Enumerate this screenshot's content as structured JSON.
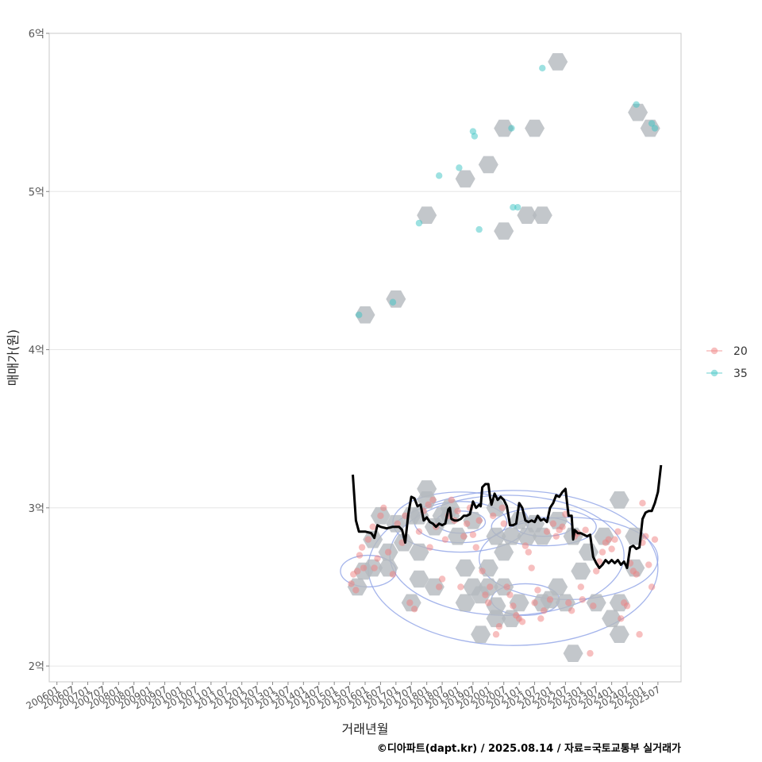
{
  "chart_data": {
    "type": "scatter",
    "xlabel": "거래년월",
    "ylabel": "매매가(원)",
    "caption": "©디아파트(dapt.kr) / 2025.08.14 / 자료=국토교통부 실거래가",
    "x_ticks": [
      "200601",
      "200607",
      "200701",
      "200707",
      "200801",
      "200807",
      "200901",
      "200907",
      "201001",
      "201007",
      "201101",
      "201107",
      "201201",
      "201207",
      "201301",
      "201307",
      "201401",
      "201407",
      "201501",
      "201507",
      "201601",
      "201607",
      "201701",
      "201707",
      "201801",
      "201807",
      "201901",
      "201907",
      "202001",
      "202007",
      "202101",
      "202107",
      "202201",
      "202207",
      "202301",
      "202307",
      "202401",
      "202407",
      "202501",
      "202507"
    ],
    "xlim": [
      2005.75,
      2026.25
    ],
    "ylim": [
      1.9,
      6.0
    ],
    "y_ticks": [
      {
        "value": 2,
        "label": "2억"
      },
      {
        "value": 3,
        "label": "3억"
      },
      {
        "value": 4,
        "label": "4억"
      },
      {
        "value": 5,
        "label": "5억"
      },
      {
        "value": 6,
        "label": "6억"
      }
    ],
    "colors": {
      "series_20": "#f08080",
      "series_35": "#3cc4c4",
      "hexbin": "#b4b9be",
      "contour": "#8ea2e6",
      "trend": "#000000",
      "grid": "#e6e6e6",
      "panel_border": "#c8c8c8"
    },
    "legend": {
      "position": "right",
      "entries": [
        {
          "label": "20",
          "series": "20"
        },
        {
          "label": "35",
          "series": "35"
        }
      ]
    },
    "series": [
      {
        "name": "20",
        "points": [
          [
            2015.55,
            2.52
          ],
          [
            2015.62,
            2.58
          ],
          [
            2015.7,
            2.48
          ],
          [
            2015.75,
            2.6
          ],
          [
            2015.82,
            2.7
          ],
          [
            2015.9,
            2.75
          ],
          [
            2015.95,
            2.62
          ],
          [
            2016.1,
            2.8
          ],
          [
            2016.25,
            2.88
          ],
          [
            2016.4,
            2.68
          ],
          [
            2016.5,
            2.95
          ],
          [
            2016.6,
            3.0
          ],
          [
            2016.75,
            2.72
          ],
          [
            2016.9,
            2.58
          ],
          [
            2017.05,
            2.9
          ],
          [
            2017.2,
            2.78
          ],
          [
            2017.3,
            2.95
          ],
          [
            2017.45,
            2.4
          ],
          [
            2017.6,
            2.36
          ],
          [
            2017.75,
            2.85
          ],
          [
            2017.9,
            2.98
          ],
          [
            2018.05,
            3.02
          ],
          [
            2018.1,
            2.75
          ],
          [
            2018.2,
            3.05
          ],
          [
            2018.3,
            2.88
          ],
          [
            2018.4,
            2.5
          ],
          [
            2018.5,
            2.55
          ],
          [
            2018.6,
            2.8
          ],
          [
            2018.7,
            2.95
          ],
          [
            2018.8,
            3.05
          ],
          [
            2018.9,
            2.92
          ],
          [
            2019.0,
            2.98
          ],
          [
            2019.1,
            2.5
          ],
          [
            2019.2,
            2.82
          ],
          [
            2019.3,
            2.9
          ],
          [
            2019.4,
            3.0
          ],
          [
            2019.5,
            2.83
          ],
          [
            2019.6,
            2.75
          ],
          [
            2019.7,
            2.92
          ],
          [
            2019.8,
            2.6
          ],
          [
            2019.9,
            2.45
          ],
          [
            2020.0,
            2.4
          ],
          [
            2020.05,
            2.5
          ],
          [
            2020.15,
            2.95
          ],
          [
            2020.25,
            2.2
          ],
          [
            2020.35,
            2.25
          ],
          [
            2020.45,
            3.0
          ],
          [
            2020.5,
            2.9
          ],
          [
            2020.6,
            2.5
          ],
          [
            2020.7,
            2.45
          ],
          [
            2020.8,
            2.38
          ],
          [
            2020.9,
            2.32
          ],
          [
            2021.0,
            2.3
          ],
          [
            2021.1,
            2.28
          ],
          [
            2021.2,
            2.76
          ],
          [
            2021.3,
            2.72
          ],
          [
            2021.4,
            2.62
          ],
          [
            2021.5,
            2.4
          ],
          [
            2021.6,
            2.48
          ],
          [
            2021.7,
            2.3
          ],
          [
            2021.8,
            2.35
          ],
          [
            2021.9,
            2.85
          ],
          [
            2022.0,
            2.42
          ],
          [
            2022.1,
            2.9
          ],
          [
            2022.2,
            2.82
          ],
          [
            2022.3,
            2.86
          ],
          [
            2022.4,
            2.88
          ],
          [
            2022.5,
            2.96
          ],
          [
            2022.6,
            2.4
          ],
          [
            2022.7,
            2.35
          ],
          [
            2022.8,
            2.82
          ],
          [
            2022.9,
            2.84
          ],
          [
            2023.0,
            2.5
          ],
          [
            2023.05,
            2.42
          ],
          [
            2023.15,
            2.86
          ],
          [
            2023.3,
            2.08
          ],
          [
            2023.4,
            2.38
          ],
          [
            2023.5,
            2.6
          ],
          [
            2023.6,
            2.66
          ],
          [
            2023.7,
            2.72
          ],
          [
            2023.8,
            2.78
          ],
          [
            2023.9,
            2.8
          ],
          [
            2024.0,
            2.74
          ],
          [
            2024.1,
            2.8
          ],
          [
            2024.2,
            2.85
          ],
          [
            2024.3,
            2.3
          ],
          [
            2024.4,
            2.4
          ],
          [
            2024.5,
            2.38
          ],
          [
            2024.6,
            2.65
          ],
          [
            2024.7,
            2.6
          ],
          [
            2024.8,
            2.58
          ],
          [
            2024.9,
            2.2
          ],
          [
            2025.0,
            2.78
          ],
          [
            2025.1,
            2.82
          ],
          [
            2025.2,
            2.64
          ],
          [
            2025.3,
            2.5
          ],
          [
            2025.4,
            2.8
          ],
          [
            2025.0,
            3.03
          ],
          [
            2016.3,
            2.62
          ]
        ]
      },
      {
        "name": "35",
        "points": [
          [
            2015.8,
            4.22
          ],
          [
            2016.9,
            4.3
          ],
          [
            2017.75,
            4.8
          ],
          [
            2018.4,
            5.1
          ],
          [
            2019.05,
            5.15
          ],
          [
            2019.5,
            5.38
          ],
          [
            2019.55,
            5.35
          ],
          [
            2019.7,
            4.76
          ],
          [
            2020.8,
            4.9
          ],
          [
            2020.95,
            4.9
          ],
          [
            2020.75,
            5.4
          ],
          [
            2021.75,
            5.78
          ],
          [
            2024.8,
            5.55
          ],
          [
            2025.3,
            5.43
          ],
          [
            2025.4,
            5.4
          ]
        ]
      }
    ],
    "hexbin_centers": [
      [
        2015.75,
        2.5
      ],
      [
        2015.95,
        2.6
      ],
      [
        2016.25,
        2.62
      ],
      [
        2016.25,
        2.8
      ],
      [
        2016.5,
        2.95
      ],
      [
        2016.75,
        2.62
      ],
      [
        2016.75,
        2.72
      ],
      [
        2017.0,
        2.9
      ],
      [
        2017.25,
        2.78
      ],
      [
        2017.5,
        2.4
      ],
      [
        2017.5,
        2.95
      ],
      [
        2017.75,
        2.95
      ],
      [
        2017.75,
        2.72
      ],
      [
        2017.75,
        2.55
      ],
      [
        2018.0,
        3.05
      ],
      [
        2018.0,
        3.12
      ],
      [
        2018.25,
        2.88
      ],
      [
        2018.25,
        2.5
      ],
      [
        2018.5,
        2.95
      ],
      [
        2018.75,
        2.95
      ],
      [
        2018.75,
        3.0
      ],
      [
        2019.0,
        2.82
      ],
      [
        2019.25,
        2.62
      ],
      [
        2019.25,
        2.4
      ],
      [
        2019.5,
        2.5
      ],
      [
        2019.5,
        2.92
      ],
      [
        2019.75,
        2.45
      ],
      [
        2019.75,
        2.2
      ],
      [
        2020.0,
        2.62
      ],
      [
        2020.0,
        2.5
      ],
      [
        2020.25,
        2.38
      ],
      [
        2020.25,
        2.3
      ],
      [
        2020.25,
        2.82
      ],
      [
        2020.25,
        3.0
      ],
      [
        2020.5,
        2.5
      ],
      [
        2020.5,
        2.72
      ],
      [
        2020.75,
        2.3
      ],
      [
        2020.75,
        2.82
      ],
      [
        2021.0,
        2.4
      ],
      [
        2021.0,
        2.92
      ],
      [
        2021.25,
        2.82
      ],
      [
        2021.5,
        2.9
      ],
      [
        2021.75,
        2.4
      ],
      [
        2021.75,
        2.82
      ],
      [
        2022.0,
        2.42
      ],
      [
        2022.25,
        2.92
      ],
      [
        2022.25,
        2.5
      ],
      [
        2022.5,
        2.4
      ],
      [
        2022.75,
        2.08
      ],
      [
        2022.75,
        2.82
      ],
      [
        2023.0,
        2.6
      ],
      [
        2023.25,
        2.72
      ],
      [
        2023.5,
        2.4
      ],
      [
        2023.75,
        2.82
      ],
      [
        2024.0,
        2.3
      ],
      [
        2024.25,
        2.2
      ],
      [
        2024.25,
        2.4
      ],
      [
        2024.25,
        3.05
      ],
      [
        2024.75,
        2.62
      ],
      [
        2024.75,
        2.82
      ],
      [
        2016.0,
        4.22
      ],
      [
        2017.0,
        4.32
      ],
      [
        2018.0,
        4.85
      ],
      [
        2019.25,
        5.08
      ],
      [
        2020.0,
        5.17
      ],
      [
        2020.5,
        5.4
      ],
      [
        2020.5,
        4.75
      ],
      [
        2021.25,
        4.85
      ],
      [
        2021.5,
        5.4
      ],
      [
        2021.75,
        4.85
      ],
      [
        2022.25,
        5.82
      ],
      [
        2024.85,
        5.5
      ],
      [
        2025.25,
        5.4
      ]
    ],
    "trend": [
      [
        2015.6,
        3.21
      ],
      [
        2015.7,
        2.92
      ],
      [
        2015.8,
        2.85
      ],
      [
        2016.0,
        2.85
      ],
      [
        2016.2,
        2.84
      ],
      [
        2016.3,
        2.81
      ],
      [
        2016.4,
        2.89
      ],
      [
        2016.5,
        2.88
      ],
      [
        2016.7,
        2.87
      ],
      [
        2016.9,
        2.88
      ],
      [
        2017.1,
        2.88
      ],
      [
        2017.2,
        2.86
      ],
      [
        2017.3,
        2.78
      ],
      [
        2017.4,
        2.96
      ],
      [
        2017.5,
        3.07
      ],
      [
        2017.6,
        3.06
      ],
      [
        2017.7,
        3.01
      ],
      [
        2017.8,
        3.02
      ],
      [
        2017.9,
        2.92
      ],
      [
        2018.0,
        2.94
      ],
      [
        2018.1,
        2.91
      ],
      [
        2018.2,
        2.9
      ],
      [
        2018.3,
        2.88
      ],
      [
        2018.4,
        2.9
      ],
      [
        2018.5,
        2.89
      ],
      [
        2018.6,
        2.9
      ],
      [
        2018.7,
        2.99
      ],
      [
        2018.75,
        3.0
      ],
      [
        2018.8,
        2.93
      ],
      [
        2018.9,
        2.92
      ],
      [
        2019.0,
        2.92
      ],
      [
        2019.1,
        2.93
      ],
      [
        2019.2,
        2.95
      ],
      [
        2019.3,
        2.95
      ],
      [
        2019.4,
        2.96
      ],
      [
        2019.5,
        3.04
      ],
      [
        2019.6,
        3.0
      ],
      [
        2019.7,
        3.02
      ],
      [
        2019.75,
        3.01
      ],
      [
        2019.8,
        3.13
      ],
      [
        2019.9,
        3.15
      ],
      [
        2020.0,
        3.15
      ],
      [
        2020.05,
        3.07
      ],
      [
        2020.1,
        3.02
      ],
      [
        2020.2,
        3.09
      ],
      [
        2020.3,
        3.05
      ],
      [
        2020.4,
        3.07
      ],
      [
        2020.5,
        3.05
      ],
      [
        2020.6,
        3.01
      ],
      [
        2020.7,
        2.89
      ],
      [
        2020.8,
        2.89
      ],
      [
        2020.9,
        2.9
      ],
      [
        2021.0,
        3.03
      ],
      [
        2021.1,
        3.0
      ],
      [
        2021.2,
        2.92
      ],
      [
        2021.3,
        2.91
      ],
      [
        2021.4,
        2.92
      ],
      [
        2021.5,
        2.91
      ],
      [
        2021.6,
        2.95
      ],
      [
        2021.7,
        2.92
      ],
      [
        2021.8,
        2.93
      ],
      [
        2021.9,
        2.91
      ],
      [
        2022.0,
        3.0
      ],
      [
        2022.1,
        3.03
      ],
      [
        2022.2,
        3.08
      ],
      [
        2022.3,
        3.07
      ],
      [
        2022.4,
        3.1
      ],
      [
        2022.5,
        3.12
      ],
      [
        2022.6,
        2.95
      ],
      [
        2022.7,
        2.95
      ],
      [
        2022.75,
        2.8
      ],
      [
        2022.8,
        2.86
      ],
      [
        2022.9,
        2.84
      ],
      [
        2023.0,
        2.84
      ],
      [
        2023.1,
        2.83
      ],
      [
        2023.2,
        2.82
      ],
      [
        2023.3,
        2.83
      ],
      [
        2023.4,
        2.69
      ],
      [
        2023.5,
        2.65
      ],
      [
        2023.6,
        2.62
      ],
      [
        2023.7,
        2.64
      ],
      [
        2023.8,
        2.67
      ],
      [
        2023.9,
        2.65
      ],
      [
        2024.0,
        2.67
      ],
      [
        2024.1,
        2.65
      ],
      [
        2024.2,
        2.67
      ],
      [
        2024.3,
        2.64
      ],
      [
        2024.4,
        2.66
      ],
      [
        2024.5,
        2.62
      ],
      [
        2024.6,
        2.75
      ],
      [
        2024.7,
        2.76
      ],
      [
        2024.8,
        2.74
      ],
      [
        2024.9,
        2.75
      ],
      [
        2025.0,
        2.93
      ],
      [
        2025.1,
        2.97
      ],
      [
        2025.2,
        2.98
      ],
      [
        2025.3,
        2.98
      ],
      [
        2025.4,
        3.03
      ],
      [
        2025.5,
        3.1
      ],
      [
        2025.6,
        3.27
      ]
    ],
    "contours": [
      {
        "cx": 2020.8,
        "cy": 2.62,
        "rx": 4.7,
        "ry": 0.49
      },
      {
        "cx": 2020.6,
        "cy": 2.7,
        "rx": 3.8,
        "ry": 0.38
      },
      {
        "cx": 2019.1,
        "cy": 2.91,
        "rx": 2.2,
        "ry": 0.19
      },
      {
        "cx": 2019.1,
        "cy": 2.91,
        "rx": 1.5,
        "ry": 0.13
      },
      {
        "cx": 2019.1,
        "cy": 2.91,
        "rx": 0.8,
        "ry": 0.07
      },
      {
        "cx": 2021.8,
        "cy": 2.88,
        "rx": 1.7,
        "ry": 0.12
      },
      {
        "cx": 2021.8,
        "cy": 2.88,
        "rx": 0.9,
        "ry": 0.06
      },
      {
        "cx": 2021.2,
        "cy": 2.42,
        "rx": 1.1,
        "ry": 0.1
      },
      {
        "cx": 2016.1,
        "cy": 2.6,
        "rx": 0.9,
        "ry": 0.1
      },
      {
        "cx": 2022.6,
        "cy": 2.68,
        "rx": 2.9,
        "ry": 0.26
      }
    ]
  }
}
